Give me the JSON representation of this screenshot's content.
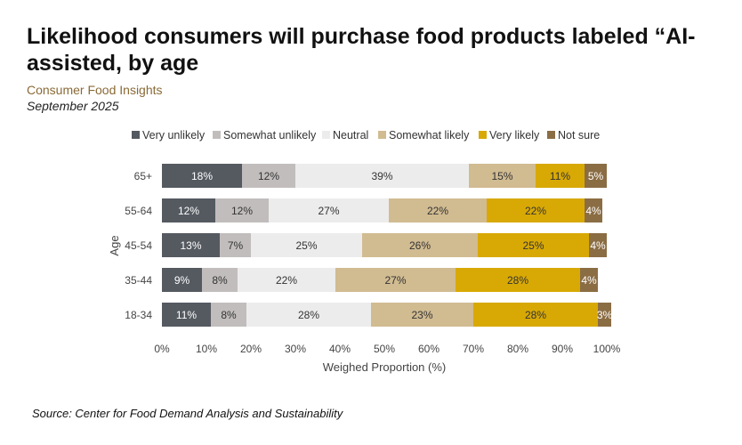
{
  "header": {
    "title": "Likelihood consumers will purchase food products labeled “AI-assisted, by age",
    "subtitle": "Consumer Food Insights",
    "date": "September 2025"
  },
  "footer": {
    "source": "Source:  Center for Food Demand Analysis and Sustainability"
  },
  "chart_data": {
    "type": "bar",
    "orientation": "horizontal",
    "stacked": true,
    "categories": [
      "65+",
      "55-64",
      "45-54",
      "35-44",
      "18-34"
    ],
    "series": [
      {
        "name": "Very unlikely",
        "color": "#555a61",
        "label_color": "#ffffff",
        "values": [
          18,
          12,
          13,
          9,
          11
        ]
      },
      {
        "name": "Somewhat unlikely",
        "color": "#c2bdbd",
        "label_color": "#333333",
        "values": [
          12,
          12,
          7,
          8,
          8
        ]
      },
      {
        "name": "Neutral",
        "color": "#ececec",
        "label_color": "#333333",
        "values": [
          39,
          27,
          25,
          22,
          28
        ]
      },
      {
        "name": "Somewhat likely",
        "color": "#d1bb91",
        "label_color": "#333333",
        "values": [
          15,
          22,
          26,
          27,
          23
        ]
      },
      {
        "name": "Very likely",
        "color": "#d8a905",
        "label_color": "#333333",
        "values": [
          11,
          22,
          25,
          28,
          28
        ]
      },
      {
        "name": "Not sure",
        "color": "#8b6d44",
        "label_color": "#ffffff",
        "values": [
          5,
          4,
          4,
          4,
          3
        ]
      }
    ],
    "xlim": [
      0,
      100
    ],
    "xticks": [
      "0%",
      "10%",
      "20%",
      "30%",
      "40%",
      "50%",
      "60%",
      "70%",
      "80%",
      "90%",
      "100%"
    ],
    "xlabel": "Weighed Proportion (%)",
    "ylabel": "Age",
    "value_suffix": "%",
    "legend_position": "top",
    "grid": false
  }
}
